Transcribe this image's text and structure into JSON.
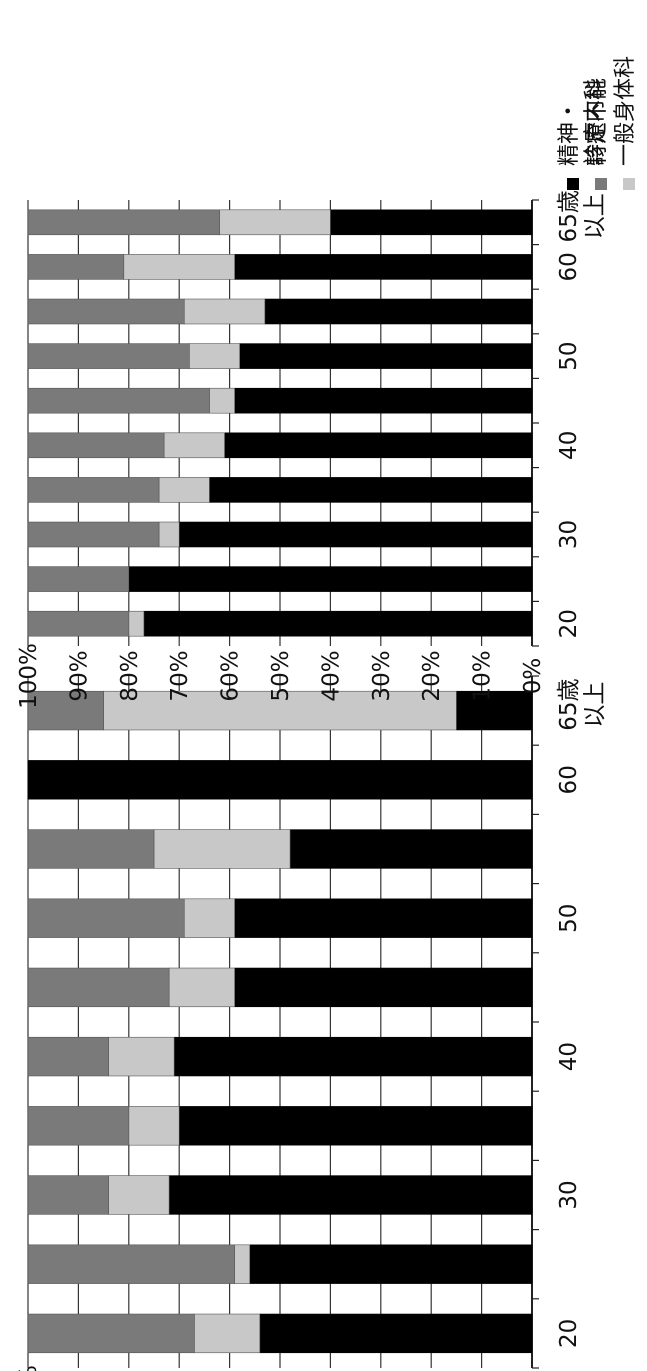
{
  "chart_data": [
    {
      "type": "bar",
      "stacked": true,
      "percent": true,
      "orientation": "vertical (page rotated 90 degrees clockwise)",
      "ylim": [
        0,
        100
      ],
      "y_ticks": [
        "0%",
        "10%",
        "20%",
        "30%",
        "40%",
        "50%",
        "60%",
        "70%",
        "80%",
        "90%",
        "100%"
      ],
      "categories": [
        "20",
        "",
        "30",
        "",
        "40",
        "",
        "50",
        "",
        "60",
        "65歳以上"
      ],
      "category_labels": [
        "20",
        "30",
        "40",
        "50",
        "60",
        "65歳",
        "以上"
      ],
      "series": [
        {
          "name": "精神・診療内科",
          "color": "#000000",
          "values": [
            54,
            56,
            72,
            70,
            71,
            59,
            59,
            48,
            100,
            15
          ]
        },
        {
          "name": "一般身体科",
          "color": "#c8c8c8",
          "values": [
            13,
            3,
            12,
            10,
            13,
            13,
            10,
            27,
            0,
            70
          ]
        },
        {
          "name": "特定不能",
          "color": "#7a7a7a",
          "values": [
            33,
            41,
            16,
            20,
            16,
            28,
            31,
            25,
            0,
            15
          ]
        }
      ],
      "grid": true
    },
    {
      "type": "bar",
      "stacked": true,
      "percent": true,
      "orientation": "vertical (page rotated 90 degrees clockwise)",
      "ylim": [
        0,
        100
      ],
      "y_ticks": [
        "0%",
        "10%",
        "20%",
        "30%",
        "40%",
        "50%",
        "60%",
        "70%",
        "80%",
        "90%",
        "100%"
      ],
      "categories": [
        "20",
        "",
        "30",
        "",
        "40",
        "",
        "50",
        "",
        "60",
        "65歳以上"
      ],
      "category_labels": [
        "20",
        "30",
        "40",
        "50",
        "60",
        "65歳",
        "以上"
      ],
      "series": [
        {
          "name": "精神・診療内科",
          "color": "#000000",
          "values": [
            77,
            80,
            70,
            64,
            61,
            59,
            58,
            53,
            59,
            40
          ]
        },
        {
          "name": "一般身体科",
          "color": "#c8c8c8",
          "values": [
            3,
            0,
            4,
            10,
            12,
            5,
            10,
            16,
            22,
            22
          ]
        },
        {
          "name": "特定不能",
          "color": "#7a7a7a",
          "values": [
            20,
            20,
            26,
            26,
            27,
            36,
            32,
            31,
            19,
            38
          ]
        }
      ],
      "grid": true
    }
  ],
  "legend": {
    "placement": "top-right",
    "items": [
      {
        "label": "特定不能",
        "color": "#7a7a7a"
      },
      {
        "label": "一般身体科",
        "color": "#c8c8c8"
      },
      {
        "label": "精神・",
        "label2": "診療内科",
        "color": "#000000"
      }
    ]
  }
}
